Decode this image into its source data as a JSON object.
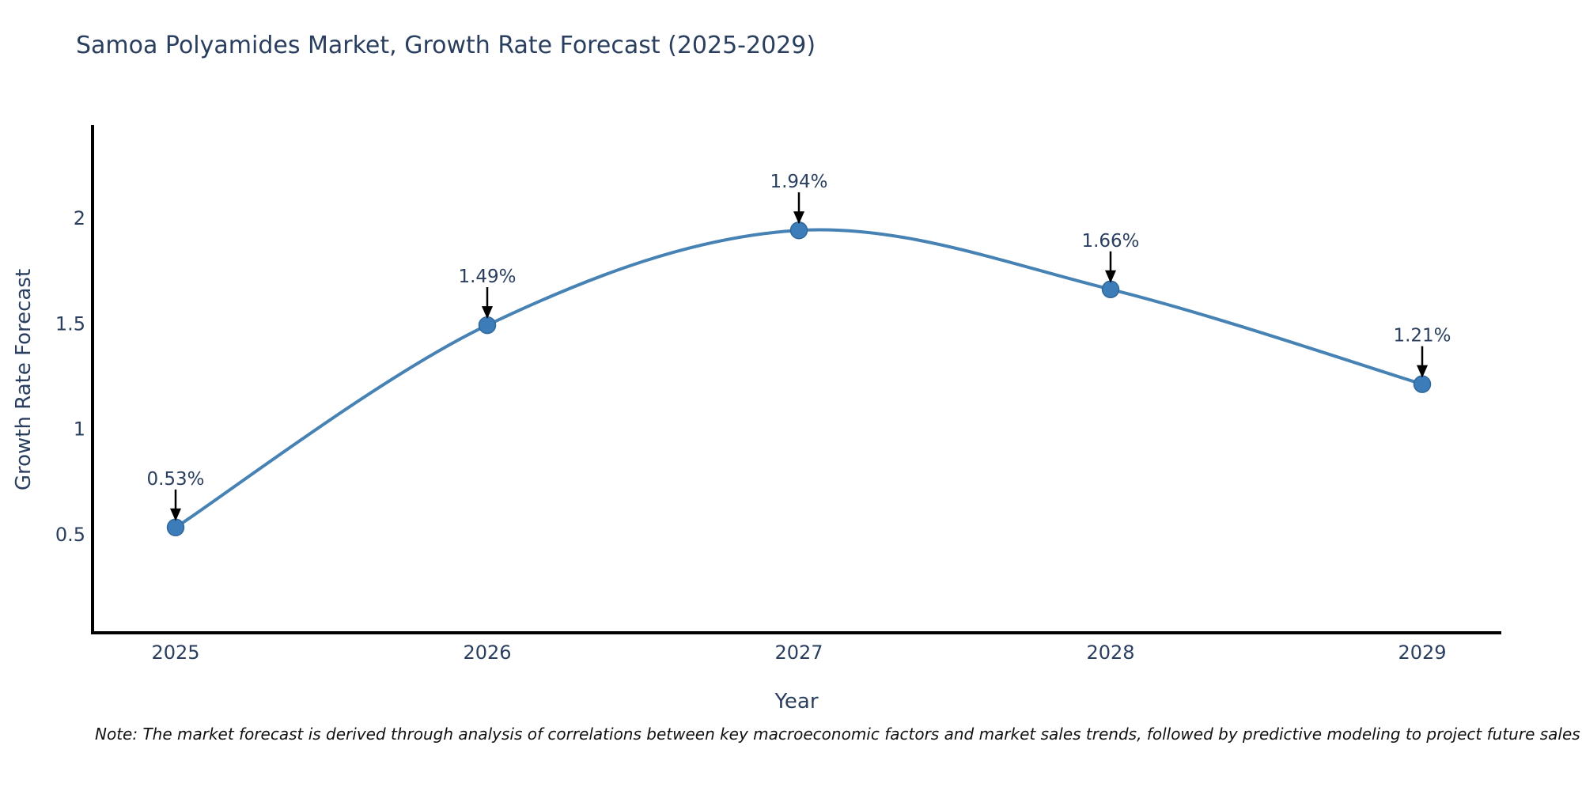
{
  "footnote": "Note: The market forecast is derived through analysis of correlations between key macroeconomic factors and market sales trends, followed by predictive modeling to project future sales trends.",
  "chart_data": {
    "type": "line",
    "title": "Samoa Polyamides Market, Growth Rate Forecast (2025-2029)",
    "x": [
      "2025",
      "2026",
      "2027",
      "2028",
      "2029"
    ],
    "values": [
      0.53,
      1.49,
      1.94,
      1.66,
      1.21
    ],
    "point_labels": [
      "0.53%",
      "1.49%",
      "1.94%",
      "1.66%",
      "1.21%"
    ],
    "xlabel": "Year",
    "ylabel": "Growth Rate Forecast",
    "y_ticks": [
      0.5,
      1,
      1.5,
      2
    ],
    "ylim": [
      0.03,
      2.44
    ],
    "line_shape": "spline",
    "grid": false,
    "legend": "none",
    "colors": {
      "line": "#4682b4",
      "marker": "#3c7cb8",
      "marker_edge": "#31689a",
      "axis": "#000000",
      "text": "#2a3f5f",
      "annotation_arrow": "#000000",
      "note_text": "#111111",
      "background": "#ffffff"
    }
  }
}
